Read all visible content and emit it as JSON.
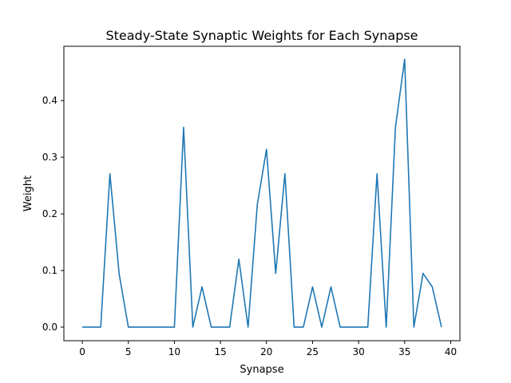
{
  "chart_data": {
    "type": "line",
    "title": "Steady-State Synaptic Weights for Each Synapse",
    "xlabel": "Synapse",
    "ylabel": "Weight",
    "xlim": [
      -2,
      41
    ],
    "ylim": [
      -0.024,
      0.496
    ],
    "xticks": [
      0,
      5,
      10,
      15,
      20,
      25,
      30,
      35,
      40
    ],
    "yticks": [
      0.0,
      0.1,
      0.2,
      0.3,
      0.4
    ],
    "xtick_labels": [
      "0",
      "5",
      "10",
      "15",
      "20",
      "25",
      "30",
      "35",
      "40"
    ],
    "ytick_labels": [
      "0.0",
      "0.1",
      "0.2",
      "0.3",
      "0.4"
    ],
    "grid": false,
    "series": [
      {
        "color": "#1f77b4",
        "x": [
          0,
          1,
          2,
          3,
          4,
          5,
          6,
          7,
          8,
          9,
          10,
          11,
          12,
          13,
          14,
          15,
          16,
          17,
          18,
          19,
          20,
          21,
          22,
          23,
          24,
          25,
          26,
          27,
          28,
          29,
          30,
          31,
          32,
          33,
          34,
          35,
          36,
          37,
          38,
          39
        ],
        "values": [
          0.0,
          0.0,
          0.0,
          0.271,
          0.094,
          0.0,
          0.0,
          0.0,
          0.0,
          0.0,
          0.0,
          0.353,
          0.0,
          0.071,
          0.0,
          0.0,
          0.0,
          0.12,
          0.0,
          0.216,
          0.314,
          0.095,
          0.271,
          0.0,
          0.0,
          0.071,
          0.0,
          0.071,
          0.0,
          0.0,
          0.0,
          0.0,
          0.271,
          0.0,
          0.353,
          0.473,
          0.0,
          0.095,
          0.071,
          0.0
        ]
      }
    ]
  }
}
